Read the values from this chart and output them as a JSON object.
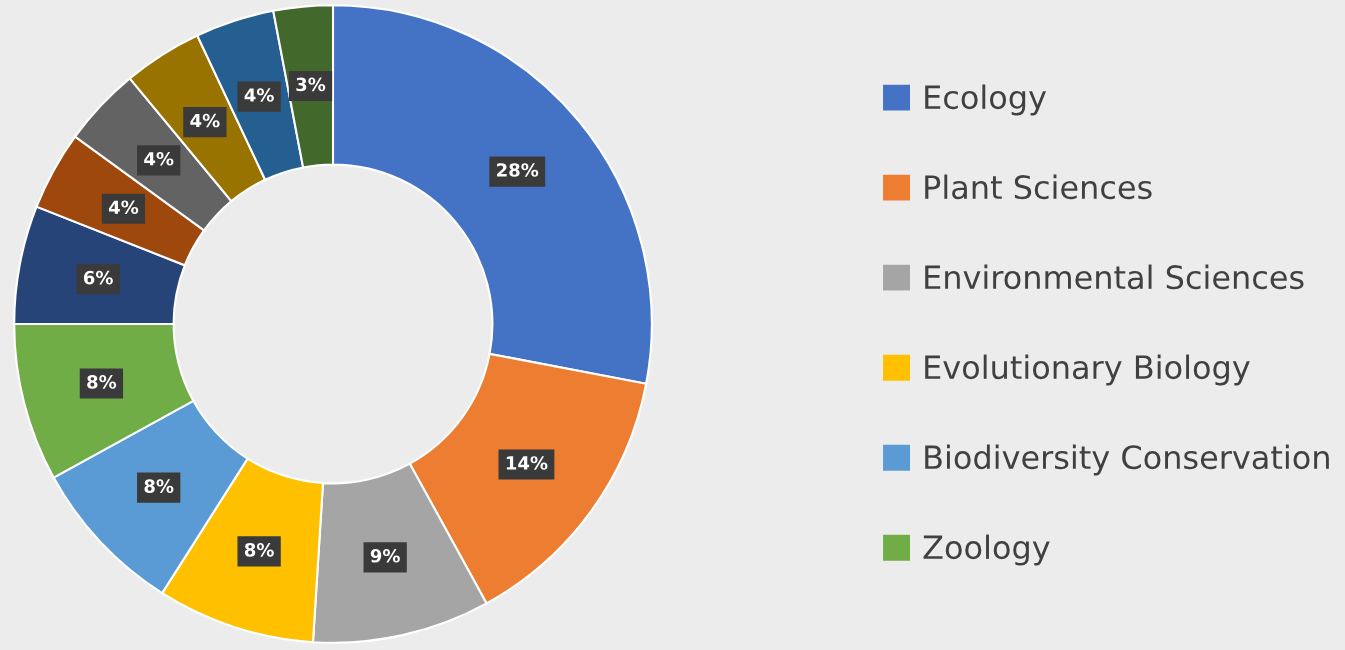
{
  "chart_data": {
    "type": "donut",
    "categories": [
      "Ecology",
      "Plant Sciences",
      "Environmental Sciences",
      "Evolutionary Biology",
      "Biodiversity Conservation",
      "Zoology",
      null,
      null,
      null,
      null,
      null,
      null
    ],
    "values": [
      28,
      14,
      9,
      8,
      8,
      8,
      6,
      4,
      4,
      4,
      4,
      3
    ],
    "colors": [
      "#4472c4",
      "#ed7d31",
      "#a5a5a5",
      "#ffc000",
      "#5b9bd5",
      "#70ad47",
      "#264478",
      "#9e480e",
      "#636363",
      "#997300",
      "#255e91",
      "#43682b"
    ],
    "value_labels": [
      "28%",
      "14%",
      "9%",
      "8%",
      "8%",
      "8%",
      "6%",
      "4%",
      "4%",
      "4%",
      "4%",
      "3%"
    ],
    "legend": "right"
  }
}
